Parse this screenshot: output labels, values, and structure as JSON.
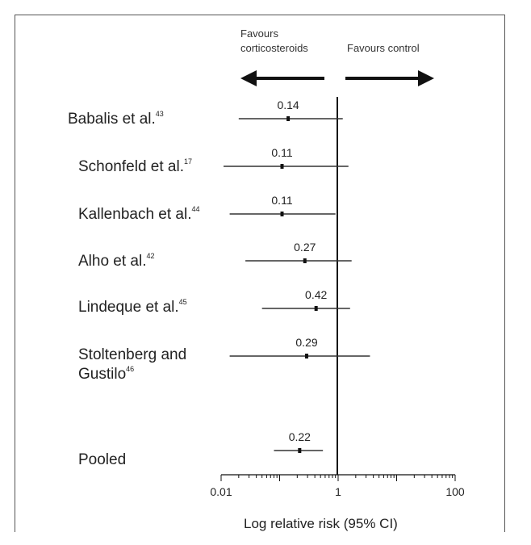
{
  "header": {
    "favours_left_line1": "Favours",
    "favours_left_line2": "corticosteroids",
    "favours_right": "Favours control"
  },
  "chart_data": {
    "type": "forest",
    "xscale": "log",
    "xlim": [
      0.01,
      100
    ],
    "xlabel": "Log relative risk (95% CI)",
    "xticks": [
      "0.01",
      "1",
      "100"
    ],
    "reference_line": 1,
    "studies": [
      {
        "label": "Babalis et al.",
        "ref": "43",
        "estimate": 0.14,
        "ci": [
          0.02,
          1.2
        ],
        "label_text": "0.14"
      },
      {
        "label": "Schonfeld et al.",
        "ref": "17",
        "estimate": 0.11,
        "ci": [
          0.011,
          1.5
        ],
        "label_text": "0.11"
      },
      {
        "label": "Kallenbach et al.",
        "ref": "44",
        "estimate": 0.11,
        "ci": [
          0.014,
          0.9
        ],
        "label_text": "0.11"
      },
      {
        "label": "Alho et al.",
        "ref": "42",
        "estimate": 0.27,
        "ci": [
          0.026,
          1.7
        ],
        "label_text": "0.27"
      },
      {
        "label": "Lindeque et al.",
        "ref": "45",
        "estimate": 0.42,
        "ci": [
          0.05,
          1.6
        ],
        "label_text": "0.42"
      },
      {
        "label_line1": "Stoltenberg and",
        "label_line2": "Gustilo",
        "ref": "46",
        "estimate": 0.29,
        "ci": [
          0.014,
          3.5
        ],
        "label_text": "0.29"
      },
      {
        "label": "Pooled",
        "ref": "",
        "estimate": 0.22,
        "ci": [
          0.08,
          0.55
        ],
        "label_text": "0.22"
      }
    ]
  }
}
